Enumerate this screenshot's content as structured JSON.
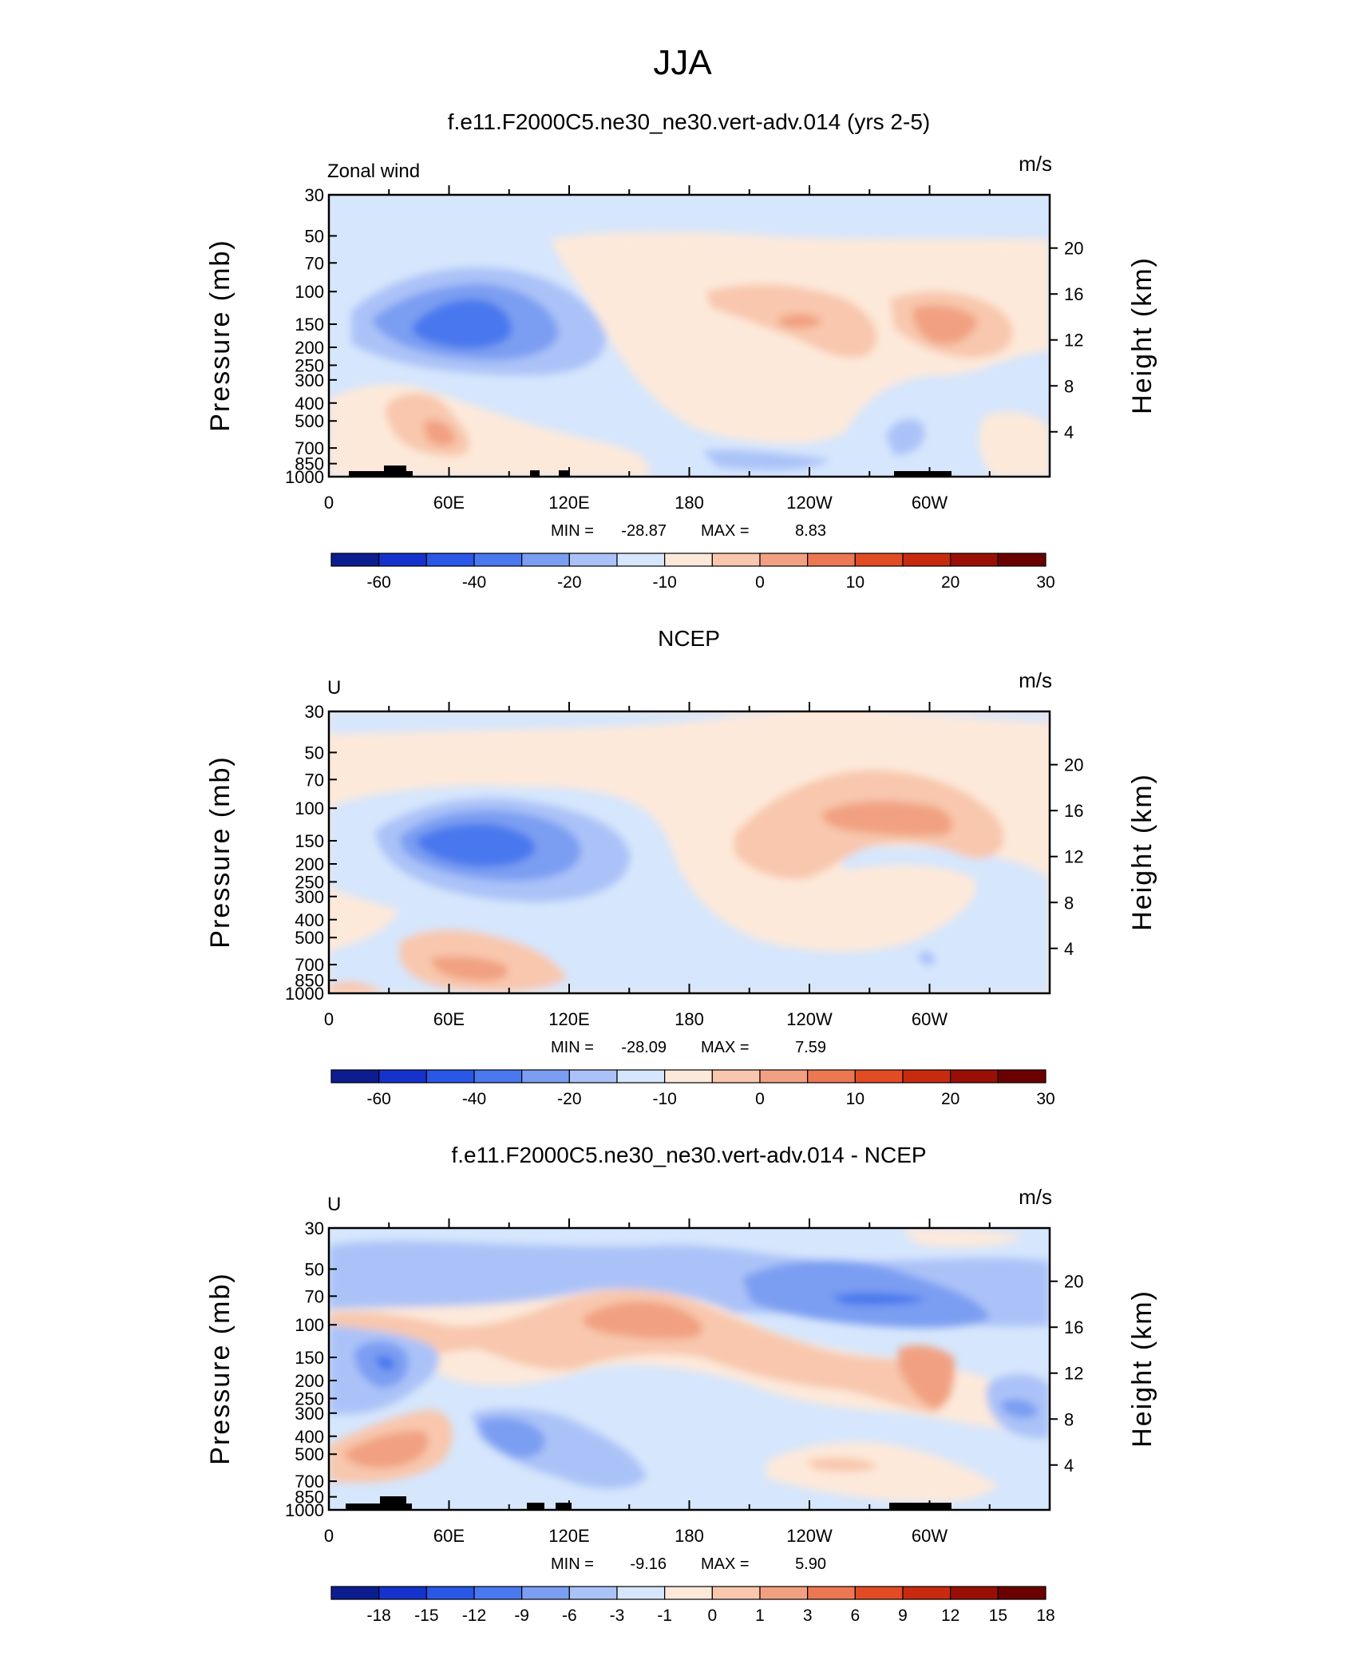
{
  "season_title": "JJA",
  "colors": {
    "abs_scale": [
      "#0b1d8f",
      "#1533cc",
      "#2a57e6",
      "#4a78ee",
      "#7b9ef2",
      "#abc2f8",
      "#d6e6fc",
      "#fde9da",
      "#f8c7ad",
      "#f1a181",
      "#eb7852",
      "#e14c25",
      "#c82a10",
      "#9a0f05",
      "#6b0000"
    ],
    "diff_scale": [
      "#0b1d8f",
      "#1533cc",
      "#2a57e6",
      "#4a78ee",
      "#7b9ef2",
      "#abc2f8",
      "#d6e6fc",
      "#fde9da",
      "#f8c7ad",
      "#f1a181",
      "#eb7852",
      "#e14c25",
      "#c82a10",
      "#9a0f05",
      "#6b0000"
    ],
    "topography": "#000000"
  },
  "chart_data": [
    {
      "type": "heatmap",
      "title": "f.e11.F2000C5.ne30_ne30.vert-adv.014 (yrs 2-5)",
      "left_label": "Zonal wind",
      "units": "m/s",
      "ylabel": "Pressure (mb)",
      "ylabel_right": "Height (km)",
      "y_ticks": [
        "30",
        "50",
        "70",
        "100",
        "150",
        "200",
        "250",
        "300",
        "400",
        "500",
        "700",
        "850",
        "1000"
      ],
      "y_right_ticks": [
        "20",
        "16",
        "12",
        "8",
        "4"
      ],
      "x_ticks": [
        "0",
        "60E",
        "120E",
        "180",
        "120W",
        "60W"
      ],
      "stats": {
        "min_label": "MIN =",
        "min": "-28.87",
        "max_label": "MAX =",
        "max": "8.83"
      },
      "colorbar_labels": [
        "-60",
        "-40",
        "-20",
        "-10",
        "0",
        "10",
        "20",
        "30"
      ],
      "features": [
        {
          "lon": 75,
          "p": 150,
          "value": -28.87
        },
        {
          "lon": 235,
          "p": 150,
          "value": 8.83
        },
        {
          "lon": 300,
          "p": 150,
          "value": 8
        },
        {
          "lon": 55,
          "p": 600,
          "value": 7
        },
        {
          "lon": 190,
          "p": 700,
          "value": -8
        },
        {
          "lon": 285,
          "p": 600,
          "value": -8
        }
      ]
    },
    {
      "type": "heatmap",
      "title": "NCEP",
      "left_label": "U",
      "units": "m/s",
      "ylabel": "Pressure (mb)",
      "ylabel_right": "Height (km)",
      "y_ticks": [
        "30",
        "50",
        "70",
        "100",
        "150",
        "200",
        "250",
        "300",
        "400",
        "500",
        "700",
        "850",
        "1000"
      ],
      "y_right_ticks": [
        "20",
        "16",
        "12",
        "8",
        "4"
      ],
      "x_ticks": [
        "0",
        "60E",
        "120E",
        "180",
        "120W",
        "60W"
      ],
      "stats": {
        "min_label": "MIN =",
        "min": "-28.09",
        "max_label": "MAX =",
        "max": "7.59"
      },
      "colorbar_labels": [
        "-60",
        "-40",
        "-20",
        "-10",
        "0",
        "10",
        "20",
        "30"
      ],
      "features": [
        {
          "lon": 75,
          "p": 150,
          "value": -28.09
        },
        {
          "lon": 275,
          "p": 100,
          "value": 7.59
        },
        {
          "lon": 70,
          "p": 700,
          "value": 6
        },
        {
          "lon": 180,
          "p": 40,
          "value": -3
        }
      ]
    },
    {
      "type": "heatmap",
      "title": "f.e11.F2000C5.ne30_ne30.vert-adv.014 - NCEP",
      "left_label": "U",
      "units": "m/s",
      "ylabel": "Pressure (mb)",
      "ylabel_right": "Height (km)",
      "y_ticks": [
        "30",
        "50",
        "70",
        "100",
        "150",
        "200",
        "250",
        "300",
        "400",
        "500",
        "700",
        "850",
        "1000"
      ],
      "y_right_ticks": [
        "20",
        "16",
        "12",
        "8",
        "4"
      ],
      "x_ticks": [
        "0",
        "60E",
        "120E",
        "180",
        "120W",
        "60W"
      ],
      "stats": {
        "min_label": "MIN =",
        "min": "-9.16",
        "max_label": "MAX =",
        "max": "5.90"
      },
      "colorbar_labels": [
        "-18",
        "-15",
        "-12",
        "-9",
        "-6",
        "-3",
        "-1",
        "0",
        "1",
        "3",
        "6",
        "9",
        "12",
        "15",
        "18"
      ],
      "features": [
        {
          "lon": 260,
          "p": 70,
          "value": -9.16
        },
        {
          "lon": 30,
          "p": 150,
          "value": -8
        },
        {
          "lon": 160,
          "p": 100,
          "value": 5.9
        },
        {
          "lon": 295,
          "p": 200,
          "value": 5
        },
        {
          "lon": 40,
          "p": 600,
          "value": 4
        },
        {
          "lon": 90,
          "p": 450,
          "value": -4
        }
      ]
    }
  ]
}
